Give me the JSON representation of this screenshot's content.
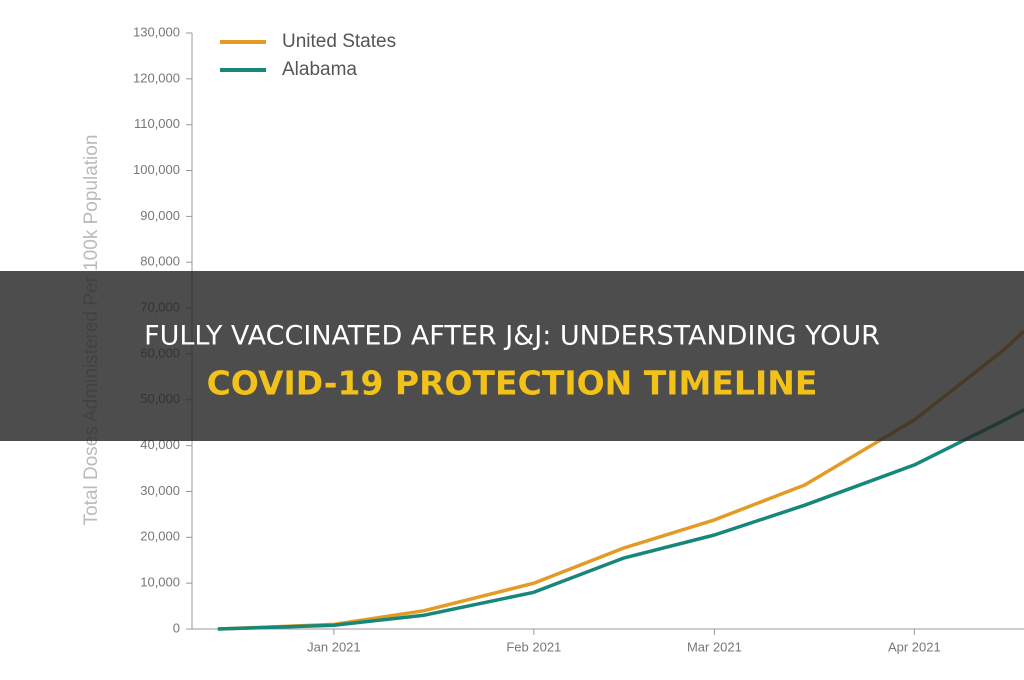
{
  "chart_data": {
    "type": "line",
    "y_label": "Total Doses Administered Per 100k Population",
    "x": [
      "2020-12-14",
      "2021-01-01",
      "2021-01-15",
      "2021-02-01",
      "2021-02-15",
      "2021-03-01",
      "2021-03-15",
      "2021-04-01",
      "2021-04-15",
      "2021-04-18"
    ],
    "series": [
      {
        "name": "United States",
        "color": "#e39b26",
        "values": [
          0,
          1000,
          4000,
          10000,
          17700,
          23800,
          31400,
          45600,
          61000,
          65000
        ]
      },
      {
        "name": "Alabama",
        "color": "#17877a",
        "values": [
          0,
          800,
          3000,
          8000,
          15500,
          20500,
          27000,
          35800,
          45600,
          47800
        ]
      }
    ],
    "xlim": [
      "2020-12-10",
      "2021-04-18"
    ],
    "xticks": [
      {
        "value": "2021-01-01",
        "label": "Jan 2021"
      },
      {
        "value": "2021-02-01",
        "label": "Feb 2021"
      },
      {
        "value": "2021-03-01",
        "label": "Mar 2021"
      },
      {
        "value": "2021-04-01",
        "label": "Apr 2021"
      }
    ],
    "ylim": [
      0,
      130000
    ],
    "yticks": [
      0,
      {
        "value": 10000,
        "label": "10,000"
      },
      {
        "value": 20000,
        "label": "20,000"
      },
      {
        "value": 30000,
        "label": "30,000"
      },
      {
        "value": 40000,
        "label": "40,000"
      },
      {
        "value": 50000,
        "label": "50,000"
      },
      {
        "value": 60000,
        "label": "60,000"
      },
      {
        "value": 70000,
        "label": "70,000"
      },
      {
        "value": 80000,
        "label": "80,000"
      },
      {
        "value": 90000,
        "label": "90,000"
      },
      {
        "value": 100000,
        "label": "100,000"
      },
      {
        "value": 110000,
        "label": "110,000"
      },
      {
        "value": 120000,
        "label": "120,000"
      },
      {
        "value": 130000,
        "label": "130,000"
      }
    ],
    "legend": "top-left"
  },
  "banner": {
    "line1": "FULLY VACCINATED AFTER J&J: UNDERSTANDING YOUR",
    "line2": "COVID-19 PROTECTION TIMELINE"
  }
}
